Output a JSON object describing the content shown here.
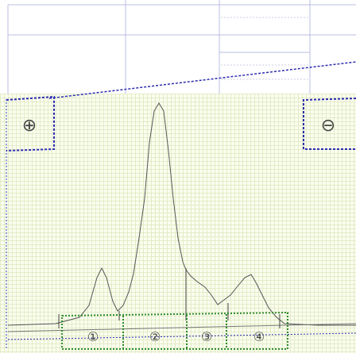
{
  "controls": {
    "zoom_in_symbol": "⊕",
    "zoom_out_symbol": "⊖"
  },
  "peaks": [
    {
      "label": "①"
    },
    {
      "label": "②"
    },
    {
      "label": "③"
    },
    {
      "label": "④"
    }
  ],
  "colors": {
    "grid_background": "#fbfdf0",
    "grid_lines": "#e2ecc6",
    "trace": "#555555",
    "selection_blue": "#2b2bb0",
    "selection_green": "#2e8b2e",
    "table_lines": "#b8bfe0"
  }
}
